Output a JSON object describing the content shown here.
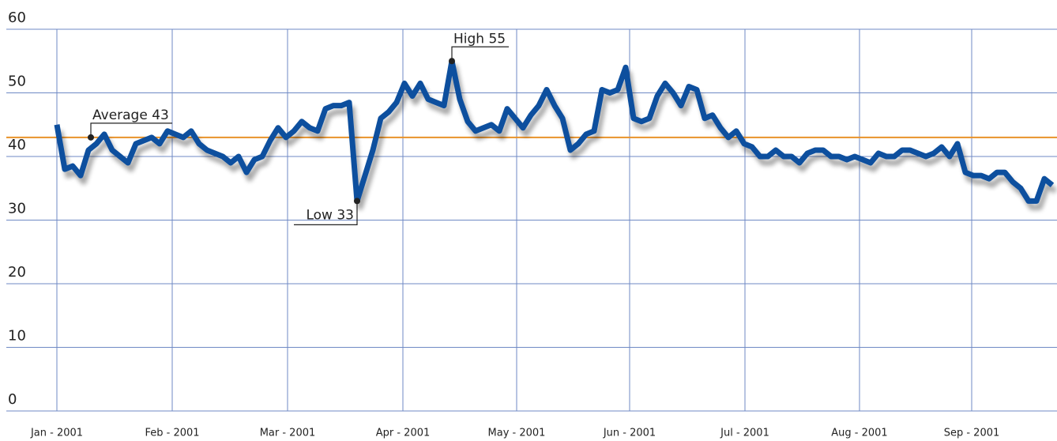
{
  "chart_data": {
    "type": "line",
    "series": [
      {
        "color": "#0b4f9e",
        "values": [
          45,
          38,
          38.5,
          37,
          41,
          42,
          43.5,
          41,
          40,
          39,
          42,
          42.5,
          43,
          42,
          44,
          43.5,
          43,
          44,
          42,
          41,
          40.5,
          40,
          39,
          40,
          37.5,
          39.5,
          40,
          42.5,
          44.5,
          43,
          44,
          45.5,
          44.5,
          44,
          47.5,
          48,
          48,
          48.5,
          33,
          37,
          41,
          46,
          47,
          48.5,
          51.5,
          49.5,
          51.5,
          49,
          48.5,
          48,
          55,
          49,
          45.5,
          44,
          44.5,
          45,
          44,
          47.5,
          46,
          44.5,
          46.5,
          48,
          50.5,
          48,
          46,
          41,
          42,
          43.5,
          44,
          50.5,
          50,
          50.5,
          54,
          46,
          45.5,
          46,
          49.5,
          51.5,
          50,
          48,
          51,
          50.5,
          46,
          46.5,
          44.5,
          43,
          44,
          42,
          41.5,
          40,
          40,
          41,
          40,
          40,
          39,
          40.5,
          41,
          41,
          40,
          40,
          39.5,
          40,
          39.5,
          39,
          40.5,
          40,
          40,
          41,
          41,
          40.5,
          40,
          40.5,
          41.5,
          40,
          42,
          37.5,
          37,
          37,
          36.5,
          37.5,
          37.5,
          36,
          35,
          33,
          33,
          36.5,
          35.5
        ]
      }
    ],
    "xlim": [
      -6.4,
      126.6
    ],
    "xticks": [
      {
        "value": 0,
        "label": "Jan - 2001"
      },
      {
        "value": 14.6,
        "label": "Feb - 2001"
      },
      {
        "value": 29.2,
        "label": "Mar - 2001"
      },
      {
        "value": 43.8,
        "label": "Apr - 2001"
      },
      {
        "value": 58.2,
        "label": "May - 2001"
      },
      {
        "value": 72.5,
        "label": "Jun - 2001"
      },
      {
        "value": 87.1,
        "label": "Jul - 2001"
      },
      {
        "value": 101.6,
        "label": "Aug - 2001"
      },
      {
        "value": 115.8,
        "label": "Sep - 2001"
      }
    ],
    "ylim": [
      0,
      60
    ],
    "yticks": [
      0,
      10,
      20,
      30,
      40,
      50,
      60
    ],
    "grid": true,
    "average": {
      "value": 43,
      "color": "#e8922a"
    },
    "annotations": [
      {
        "label": "Average 43",
        "x": 4.3,
        "y": 43,
        "side": "up"
      },
      {
        "label": "Low 33",
        "x": 38,
        "y": 33,
        "side": "down-left"
      },
      {
        "label": "High 55",
        "x": 50,
        "y": 55,
        "side": "up"
      }
    ]
  }
}
